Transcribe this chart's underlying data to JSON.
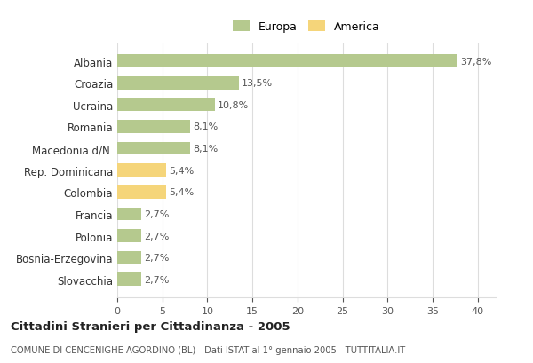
{
  "categories": [
    "Albania",
    "Croazia",
    "Ucraina",
    "Romania",
    "Macedonia d/N.",
    "Rep. Dominicana",
    "Colombia",
    "Francia",
    "Polonia",
    "Bosnia-Erzegovina",
    "Slovacchia"
  ],
  "values": [
    37.8,
    13.5,
    10.8,
    8.1,
    8.1,
    5.4,
    5.4,
    2.7,
    2.7,
    2.7,
    2.7
  ],
  "labels": [
    "37,8%",
    "13,5%",
    "10,8%",
    "8,1%",
    "8,1%",
    "5,4%",
    "5,4%",
    "2,7%",
    "2,7%",
    "2,7%",
    "2,7%"
  ],
  "colors": [
    "#b5c98e",
    "#b5c98e",
    "#b5c98e",
    "#b5c98e",
    "#b5c98e",
    "#f5d57a",
    "#f5d57a",
    "#b5c98e",
    "#b5c98e",
    "#b5c98e",
    "#b5c98e"
  ],
  "europa_color": "#b5c98e",
  "america_color": "#f5d57a",
  "title": "Cittadini Stranieri per Cittadinanza - 2005",
  "subtitle": "COMUNE DI CENCENIGHE AGORDINO (BL) - Dati ISTAT al 1° gennaio 2005 - TUTTITALIA.IT",
  "xlim": [
    0,
    42
  ],
  "xticks": [
    0,
    5,
    10,
    15,
    20,
    25,
    30,
    35,
    40
  ],
  "background_color": "#ffffff",
  "grid_color": "#dddddd",
  "bar_height": 0.6,
  "legend_europa": "Europa",
  "legend_america": "America"
}
